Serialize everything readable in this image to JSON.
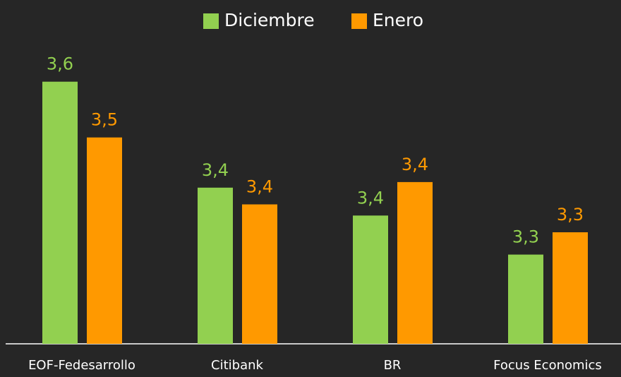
{
  "chart_data": {
    "type": "bar",
    "categories": [
      "EOF-Fedesarrollo",
      "Citibank",
      "BR",
      "Focus Economics"
    ],
    "series": [
      {
        "name": "Diciembre",
        "color": "#92d050",
        "values": [
          3.6,
          3.41,
          3.36,
          3.29
        ],
        "value_labels": [
          "3,6",
          "3,4",
          "3,4",
          "3,3"
        ]
      },
      {
        "name": "Enero",
        "color": "#ff9900",
        "values": [
          3.5,
          3.38,
          3.42,
          3.33
        ],
        "value_labels": [
          "3,5",
          "3,4",
          "3,4",
          "3,3"
        ]
      }
    ],
    "ylim": [
      3.13,
      3.63
    ],
    "legend": "top"
  }
}
